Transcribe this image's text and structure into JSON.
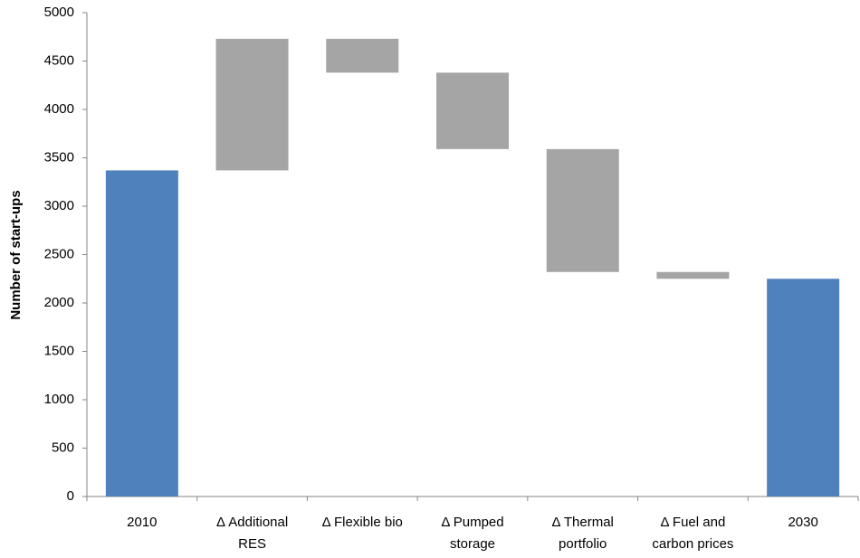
{
  "chart_data": {
    "type": "waterfall",
    "ylabel": "Number of start-ups",
    "categories": [
      "2010",
      "Δ Additional RES",
      "Δ Flexible bio",
      "Δ Pumped storage",
      "Δ Thermal portfolio",
      "Δ Fuel and carbon prices",
      "2030"
    ],
    "values": [
      3370,
      1360,
      -350,
      -790,
      -1270,
      -70,
      2250
    ],
    "measure": [
      "absolute",
      "relative",
      "relative",
      "relative",
      "relative",
      "relative",
      "absolute"
    ],
    "colors": [
      "#4f81bd",
      "#a5a5a5",
      "#a5a5a5",
      "#a5a5a5",
      "#a5a5a5",
      "#a5a5a5",
      "#4f81bd"
    ],
    "ylim": [
      0,
      5000
    ],
    "yticks": [
      0,
      500,
      1000,
      1500,
      2000,
      2500,
      3000,
      3500,
      4000,
      4500,
      5000
    ],
    "grid": false
  }
}
